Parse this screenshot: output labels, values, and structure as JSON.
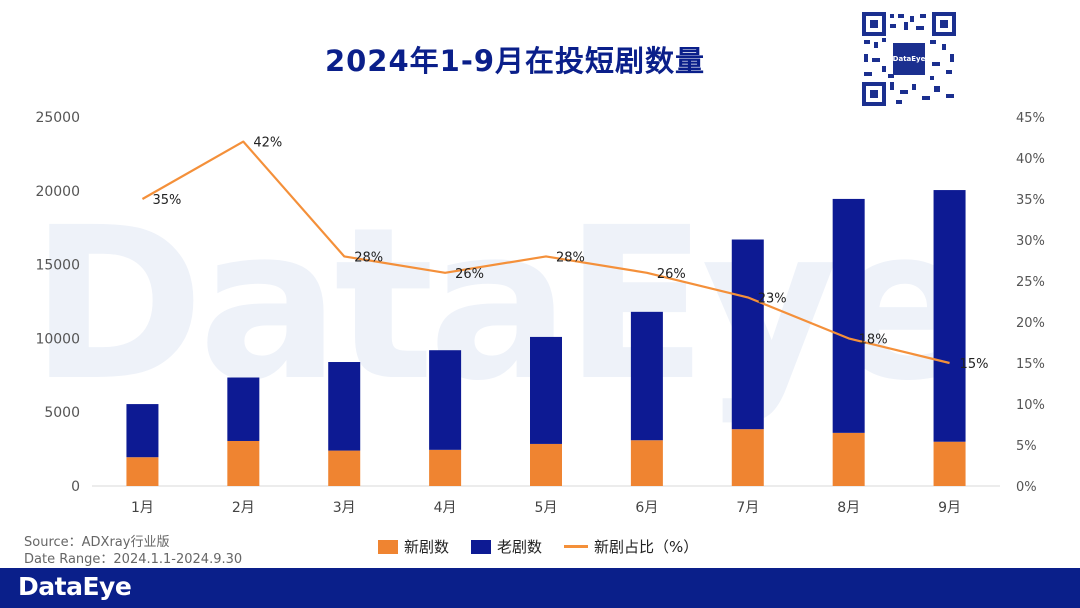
{
  "title": "2024年1-9月在投短剧数量",
  "watermark": "DataEye",
  "qr": {
    "logo_text": "DataEye"
  },
  "source_line": "Source：ADXray行业版",
  "date_line": "Date Range：2024.1.1-2024.9.30",
  "footer_logo": "DataEye",
  "colors": {
    "new": "#ef8431",
    "old": "#0d1a93",
    "line": "#f4903a",
    "footer": "#0a1f8a"
  },
  "chart_data": {
    "type": "bar",
    "stacked": true,
    "categories": [
      "1月",
      "2月",
      "3月",
      "4月",
      "5月",
      "6月",
      "7月",
      "8月",
      "9月"
    ],
    "series": [
      {
        "name": "新剧数",
        "values": [
          1950,
          3050,
          2400,
          2450,
          2850,
          3100,
          3850,
          3600,
          3000
        ]
      },
      {
        "name": "老剧数",
        "values": [
          3600,
          4300,
          6000,
          6750,
          7250,
          8700,
          12850,
          15850,
          17050
        ]
      }
    ],
    "line_series": {
      "name": "新剧占比（%）",
      "values": [
        35,
        42,
        28,
        26,
        28,
        26,
        23,
        18,
        15
      ],
      "labels": [
        "35%",
        "42%",
        "28%",
        "26%",
        "28%",
        "26%",
        "23%",
        "18%",
        "15%"
      ],
      "axis": "right"
    },
    "y_left": {
      "min": 0,
      "max": 25000,
      "ticks": [
        "0",
        "5000",
        "10000",
        "15000",
        "20000",
        "25000"
      ]
    },
    "y_right": {
      "min": 0,
      "max": 45,
      "ticks": [
        "0%",
        "5%",
        "10%",
        "15%",
        "20%",
        "25%",
        "30%",
        "35%",
        "40%",
        "45%"
      ]
    },
    "grid": false,
    "legend_position": "bottom"
  }
}
